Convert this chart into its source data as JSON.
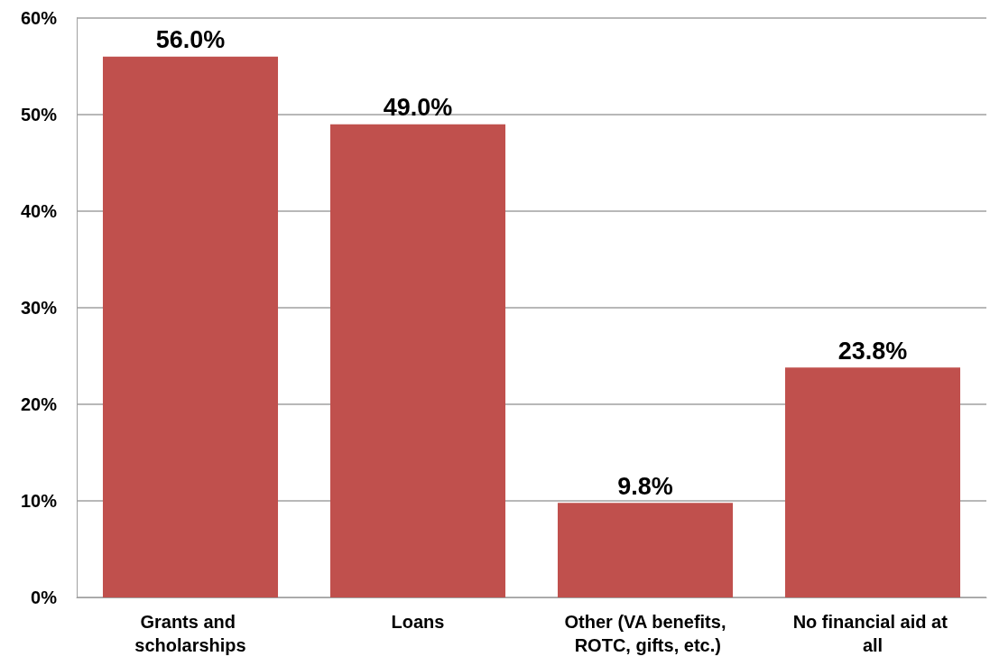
{
  "chart_data": {
    "type": "bar",
    "categories": [
      "Grants and scholarships",
      "Loans",
      "Other (VA benefits, ROTC, gifts, etc.)",
      "No financial aid at all"
    ],
    "values": [
      56.0,
      49.0,
      9.8,
      23.8
    ],
    "value_labels": [
      "56.0%",
      "49.0%",
      "9.8%",
      "23.8%"
    ],
    "color": "#c0504d",
    "ylim": [
      0,
      60
    ],
    "yticks": [
      {
        "value": 0,
        "label": "0%"
      },
      {
        "value": 10,
        "label": "10%"
      },
      {
        "value": 20,
        "label": "20%"
      },
      {
        "value": 30,
        "label": "30%"
      },
      {
        "value": 40,
        "label": "40%"
      },
      {
        "value": 50,
        "label": "50%"
      },
      {
        "value": 60,
        "label": "60%"
      }
    ],
    "grid": "y"
  }
}
